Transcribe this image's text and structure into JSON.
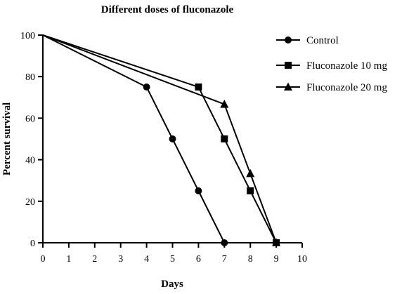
{
  "chart_data": {
    "type": "line",
    "title": "Different doses of fluconazole",
    "xlabel": "Days",
    "ylabel": "Percent survival",
    "xlim": [
      0,
      10
    ],
    "ylim": [
      0,
      100
    ],
    "xticks": [
      "0",
      "1",
      "2",
      "3",
      "4",
      "5",
      "6",
      "7",
      "8",
      "9",
      "10"
    ],
    "yticks": [
      "0",
      "20",
      "40",
      "60",
      "80",
      "100"
    ],
    "grid": false,
    "legend_position": "top-right",
    "series": [
      {
        "name": "Control",
        "marker": "circle",
        "color": "#000000",
        "x": [
          0,
          4,
          5,
          6,
          7
        ],
        "y": [
          100,
          75,
          50,
          25,
          0
        ]
      },
      {
        "name": "Fluconazole 10 mg",
        "marker": "square",
        "color": "#000000",
        "x": [
          0,
          6,
          7,
          8,
          9
        ],
        "y": [
          100,
          75,
          50,
          25,
          0
        ]
      },
      {
        "name": "Fluconazole 20 mg",
        "marker": "triangle",
        "color": "#000000",
        "x": [
          0,
          7,
          8,
          9
        ],
        "y": [
          100,
          66.7,
          33.3,
          0
        ]
      }
    ]
  }
}
